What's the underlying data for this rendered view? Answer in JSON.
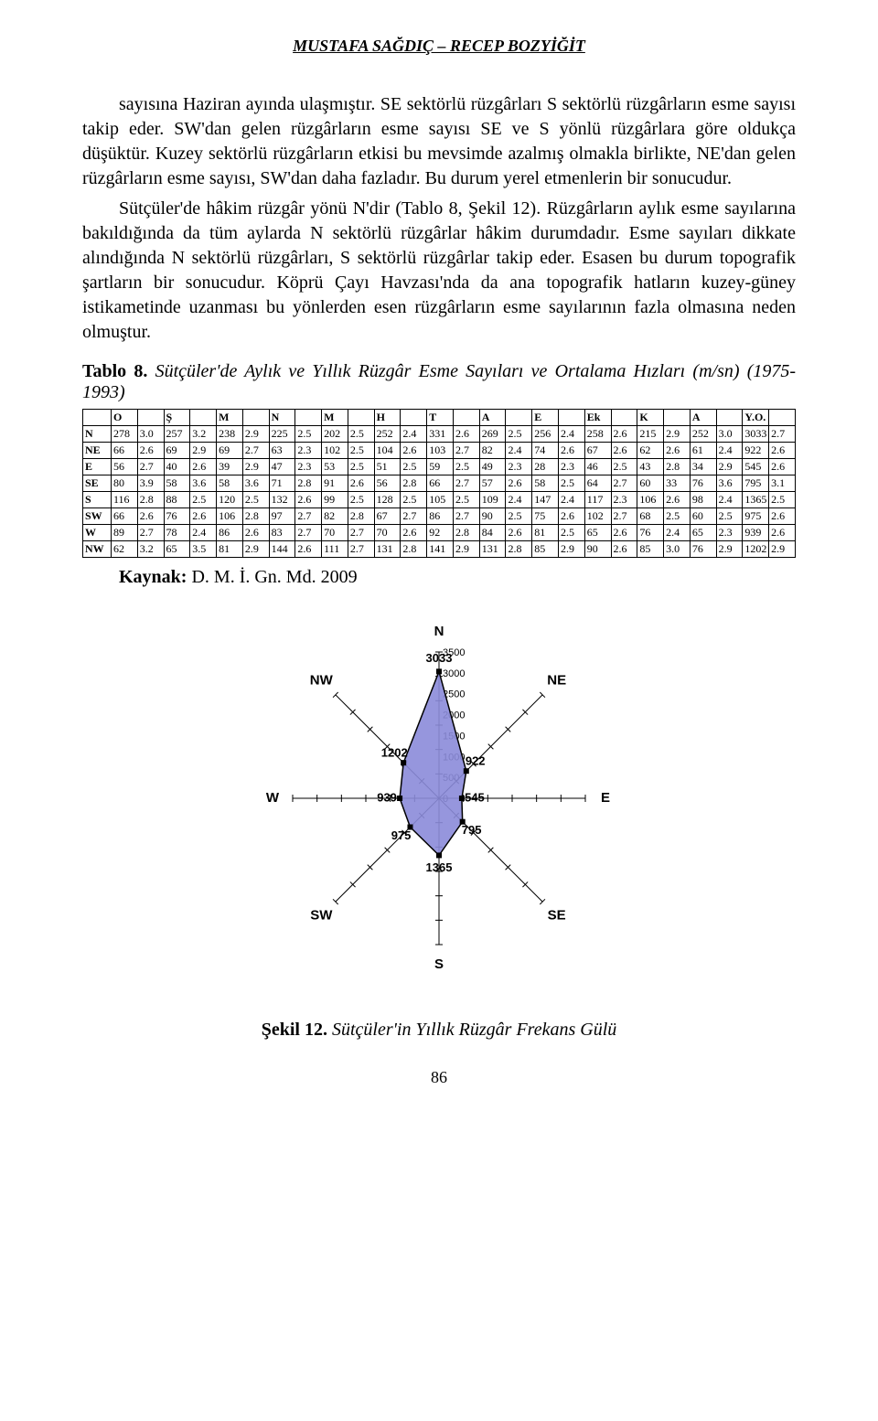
{
  "header": "MUSTAFA SAĞDIÇ – RECEP BOZYİĞİT",
  "paragraphs": [
    "sayısına Haziran ayında ulaşmıştır. SE sektörlü rüzgârları S sektörlü rüzgârların esme sayısı takip eder. SW'dan gelen rüzgârların esme sayısı SE ve S yönlü rüzgârlara göre oldukça düşüktür. Kuzey sektörlü rüzgârların etkisi bu mevsimde azalmış olmakla birlikte, NE'dan gelen rüzgârların esme sayısı, SW'dan daha fazladır. Bu durum yerel etmenlerin bir sonucudur.",
    "Sütçüler'de hâkim rüzgâr yönü N'dir (Tablo 8, Şekil 12). Rüzgârların aylık esme sayılarına bakıldığında da tüm aylarda N sektörlü rüzgârlar hâkim durumdadır. Esme sayıları dikkate alındığında N sektörlü rüzgârları, S sektörlü rüzgârlar takip eder. Esasen bu durum topografik şartların bir sonucudur. Köprü Çayı Havzası'nda da ana topografik hatların kuzey-güney istikametinde uzanması bu yönlerden esen rüzgârların esme sayılarının fazla olmasına neden olmuştur."
  ],
  "table8": {
    "caption_bold": "Tablo 8.",
    "caption_italic": "Sütçüler'de Aylık ve Yıllık Rüzgâr Esme Sayıları ve Ortalama Hızları (m/sn) (1975-1993)",
    "columns": [
      "",
      "O",
      "",
      "Ş",
      "",
      "M",
      "",
      "N",
      "",
      "M",
      "",
      "H",
      "",
      "T",
      "",
      "A",
      "",
      "E",
      "",
      "Ek",
      "",
      "K",
      "",
      "A",
      "",
      "Y.O.",
      ""
    ],
    "rows": [
      [
        "N",
        "278",
        "3.0",
        "257",
        "3.2",
        "238",
        "2.9",
        "225",
        "2.5",
        "202",
        "2.5",
        "252",
        "2.4",
        "331",
        "2.6",
        "269",
        "2.5",
        "256",
        "2.4",
        "258",
        "2.6",
        "215",
        "2.9",
        "252",
        "3.0",
        "3033",
        "2.7"
      ],
      [
        "NE",
        "66",
        "2.6",
        "69",
        "2.9",
        "69",
        "2.7",
        "63",
        "2.3",
        "102",
        "2.5",
        "104",
        "2.6",
        "103",
        "2.7",
        "82",
        "2.4",
        "74",
        "2.6",
        "67",
        "2.6",
        "62",
        "2.6",
        "61",
        "2.4",
        "922",
        "2.6"
      ],
      [
        "E",
        "56",
        "2.7",
        "40",
        "2.6",
        "39",
        "2.9",
        "47",
        "2.3",
        "53",
        "2.5",
        "51",
        "2.5",
        "59",
        "2.5",
        "49",
        "2.3",
        "28",
        "2.3",
        "46",
        "2.5",
        "43",
        "2.8",
        "34",
        "2.9",
        "545",
        "2.6"
      ],
      [
        "SE",
        "80",
        "3.9",
        "58",
        "3.6",
        "58",
        "3.6",
        "71",
        "2.8",
        "91",
        "2.6",
        "56",
        "2.8",
        "66",
        "2.7",
        "57",
        "2.6",
        "58",
        "2.5",
        "64",
        "2.7",
        "60",
        "33",
        "76",
        "3.6",
        "795",
        "3.1"
      ],
      [
        "S",
        "116",
        "2.8",
        "88",
        "2.5",
        "120",
        "2.5",
        "132",
        "2.6",
        "99",
        "2.5",
        "128",
        "2.5",
        "105",
        "2.5",
        "109",
        "2.4",
        "147",
        "2.4",
        "117",
        "2.3",
        "106",
        "2.6",
        "98",
        "2.4",
        "1365",
        "2.5"
      ],
      [
        "SW",
        "66",
        "2.6",
        "76",
        "2.6",
        "106",
        "2.8",
        "97",
        "2.7",
        "82",
        "2.8",
        "67",
        "2.7",
        "86",
        "2.7",
        "90",
        "2.5",
        "75",
        "2.6",
        "102",
        "2.7",
        "68",
        "2.5",
        "60",
        "2.5",
        "975",
        "2.6"
      ],
      [
        "W",
        "89",
        "2.7",
        "78",
        "2.4",
        "86",
        "2.6",
        "83",
        "2.7",
        "70",
        "2.7",
        "70",
        "2.6",
        "92",
        "2.8",
        "84",
        "2.6",
        "81",
        "2.5",
        "65",
        "2.6",
        "76",
        "2.4",
        "65",
        "2.3",
        "939",
        "2.6"
      ],
      [
        "NW",
        "62",
        "3.2",
        "65",
        "3.5",
        "81",
        "2.9",
        "144",
        "2.6",
        "111",
        "2.7",
        "131",
        "2.8",
        "141",
        "2.9",
        "131",
        "2.8",
        "85",
        "2.9",
        "90",
        "2.6",
        "85",
        "3.0",
        "76",
        "2.9",
        "1202",
        "2.9"
      ]
    ]
  },
  "kaynak_bold": "Kaynak:",
  "kaynak_rest": " D. M. İ. Gn. Md. 2009",
  "radar": {
    "directions": [
      "N",
      "NE",
      "E",
      "SE",
      "S",
      "SW",
      "W",
      "NW"
    ],
    "values": [
      3033,
      922,
      545,
      795,
      1365,
      975,
      939,
      1202
    ],
    "center_value": 0,
    "ring_labels": [
      "500",
      "1000",
      "1500",
      "2000",
      "2500",
      "3000",
      "3500"
    ],
    "ring_step": 500,
    "max": 3500,
    "fill_color": "#8b8bd9",
    "stroke_color": "#000000",
    "axis_color": "#000000",
    "text_color": "#000000",
    "label_font_size": 13,
    "dir_font_size": 15,
    "background": "#ffffff"
  },
  "figure": {
    "bold": "Şekil 12.",
    "italic": "Sütçüler'in Yıllık Rüzgâr Frekans Gülü"
  },
  "page_number": "86"
}
